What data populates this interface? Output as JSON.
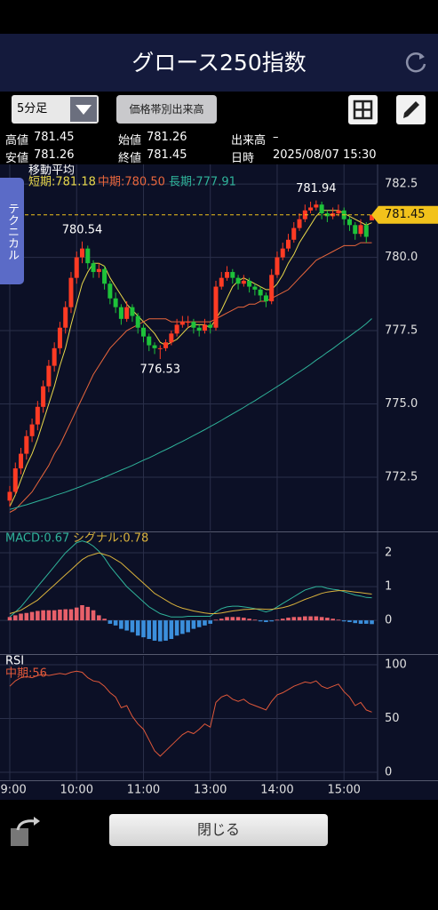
{
  "header": {
    "title": "グロース250指数"
  },
  "toolbar": {
    "interval": "5分足",
    "button": "価格帯別出来高"
  },
  "info": {
    "rows": [
      [
        {
          "label": "高値",
          "value": 781.45
        },
        {
          "label": "始値",
          "value": 781.26
        },
        {
          "label": "出来高",
          "value": "–"
        }
      ],
      [
        {
          "label": "安値",
          "value": 781.26
        },
        {
          "label": "終値",
          "value": 781.45
        },
        {
          "label": "日時",
          "value": "2025/08/07 15:30"
        }
      ]
    ]
  },
  "side_tab": "テクニカル",
  "close_button": "閉じる",
  "chart_data": [
    {
      "type": "candlestick",
      "legend_title": "移動平均",
      "categories": [
        "09:00",
        null,
        null,
        null,
        null,
        null,
        null,
        null,
        null,
        null,
        null,
        null,
        "10:00",
        null,
        null,
        null,
        null,
        null,
        null,
        null,
        null,
        null,
        null,
        null,
        "11:00",
        null,
        null,
        null,
        null,
        null,
        null,
        null,
        null,
        null,
        null,
        null,
        "13:00",
        null,
        null,
        null,
        null,
        null,
        null,
        null,
        null,
        null,
        null,
        null,
        "14:00",
        null,
        null,
        null,
        null,
        null,
        null,
        null,
        null,
        null,
        null,
        null,
        "15:00",
        null,
        null,
        null,
        null,
        null
      ],
      "open": [
        771.7,
        772.0,
        772.8,
        773.3,
        773.9,
        774.3,
        774.9,
        775.6,
        776.3,
        776.9,
        777.6,
        778.3,
        779.3,
        780.0,
        780.3,
        779.8,
        779.5,
        779.6,
        779.1,
        778.6,
        778.3,
        777.9,
        778.3,
        778.0,
        777.6,
        777.3,
        777.0,
        776.9,
        776.9,
        777.1,
        777.4,
        777.7,
        777.8,
        777.8,
        777.6,
        777.5,
        777.7,
        777.6,
        779.0,
        779.3,
        779.5,
        779.3,
        779.1,
        779.2,
        779.0,
        778.9,
        778.7,
        778.5,
        779.4,
        780.0,
        780.3,
        780.6,
        781.0,
        781.3,
        781.6,
        781.7,
        781.8,
        781.5,
        781.4,
        781.5,
        781.6,
        781.3,
        781.1,
        780.8,
        781.1,
        781.26
      ],
      "high": [
        772.2,
        773.0,
        773.5,
        774.1,
        774.5,
        775.1,
        775.8,
        776.5,
        777.1,
        777.8,
        778.5,
        779.5,
        780.2,
        780.54,
        780.4,
        779.9,
        779.8,
        779.7,
        779.2,
        778.8,
        778.4,
        778.5,
        778.4,
        778.1,
        777.7,
        777.4,
        777.1,
        777.0,
        777.2,
        777.5,
        777.9,
        778.0,
        778.0,
        777.9,
        777.7,
        777.9,
        777.8,
        779.2,
        779.5,
        779.7,
        779.6,
        779.4,
        779.4,
        779.3,
        779.1,
        779.0,
        778.8,
        779.6,
        780.2,
        780.5,
        780.8,
        781.2,
        781.5,
        781.8,
        781.9,
        781.94,
        781.9,
        781.6,
        781.7,
        781.8,
        781.7,
        781.4,
        781.2,
        781.3,
        781.2,
        781.45
      ],
      "low": [
        771.5,
        771.9,
        772.6,
        773.1,
        773.7,
        774.1,
        774.7,
        775.4,
        776.1,
        776.7,
        777.4,
        778.1,
        779.1,
        779.8,
        779.6,
        779.3,
        779.3,
        778.9,
        778.4,
        778.1,
        777.7,
        777.8,
        777.8,
        777.4,
        777.1,
        776.8,
        776.7,
        776.53,
        776.8,
        777.0,
        777.3,
        777.6,
        777.6,
        777.4,
        777.3,
        777.4,
        777.4,
        777.5,
        778.9,
        779.2,
        779.1,
        778.9,
        779.0,
        778.8,
        778.7,
        778.5,
        778.3,
        778.4,
        779.3,
        779.9,
        780.2,
        780.5,
        780.9,
        781.2,
        781.5,
        781.6,
        781.3,
        781.2,
        781.3,
        781.4,
        781.1,
        780.9,
        780.6,
        780.7,
        780.5,
        781.26
      ],
      "close": [
        772.0,
        772.8,
        773.3,
        773.9,
        774.3,
        774.9,
        775.6,
        776.3,
        776.9,
        777.6,
        778.3,
        779.3,
        780.0,
        780.3,
        779.8,
        779.5,
        779.6,
        779.1,
        778.6,
        778.3,
        777.9,
        778.3,
        778.0,
        777.6,
        777.3,
        777.0,
        776.9,
        776.9,
        777.1,
        777.4,
        777.7,
        777.8,
        777.8,
        777.6,
        777.5,
        777.7,
        777.6,
        779.0,
        779.3,
        779.5,
        779.3,
        779.1,
        779.2,
        779.0,
        778.9,
        778.7,
        778.5,
        779.4,
        780.0,
        780.3,
        780.6,
        781.0,
        781.3,
        781.6,
        781.7,
        781.8,
        781.5,
        781.4,
        781.5,
        781.6,
        781.3,
        781.1,
        780.8,
        781.1,
        780.7,
        781.45
      ],
      "up_color": "#ff3b24",
      "down_color": "#1ec23a",
      "series": [
        {
          "name": "短期:781.18",
          "color": "#e8d84a",
          "values": [
            771.5,
            771.9,
            772.4,
            772.9,
            773.3,
            773.8,
            774.4,
            775.0,
            775.6,
            776.3,
            776.9,
            777.7,
            778.4,
            779.1,
            779.5,
            779.8,
            779.8,
            779.7,
            779.3,
            779.0,
            778.7,
            778.4,
            778.2,
            778.0,
            777.8,
            777.6,
            777.4,
            777.1,
            777.0,
            777.1,
            777.2,
            777.4,
            777.6,
            777.7,
            777.7,
            777.7,
            777.6,
            777.9,
            778.2,
            778.6,
            779.0,
            779.2,
            779.3,
            779.2,
            779.1,
            779.0,
            778.9,
            778.9,
            779.1,
            779.4,
            779.8,
            780.1,
            780.5,
            780.8,
            781.1,
            781.4,
            781.6,
            781.6,
            781.6,
            781.6,
            781.5,
            781.4,
            781.3,
            781.2,
            781.1,
            781.18
          ]
        },
        {
          "name": "中期:780.50",
          "color": "#e8663c",
          "values": [
            771.3,
            771.4,
            771.6,
            771.8,
            772.0,
            772.3,
            772.6,
            772.9,
            773.3,
            773.6,
            774.0,
            774.4,
            774.8,
            775.2,
            775.6,
            776.0,
            776.3,
            776.6,
            776.9,
            777.1,
            777.3,
            777.5,
            777.6,
            777.7,
            777.8,
            777.9,
            777.9,
            777.9,
            777.9,
            777.8,
            777.8,
            777.8,
            777.8,
            777.8,
            777.8,
            777.8,
            777.8,
            777.9,
            778.0,
            778.1,
            778.2,
            778.3,
            778.3,
            778.4,
            778.4,
            778.5,
            778.5,
            778.6,
            778.7,
            778.8,
            778.9,
            779.1,
            779.3,
            779.5,
            779.7,
            779.9,
            780.0,
            780.1,
            780.2,
            780.3,
            780.4,
            780.4,
            780.4,
            780.5,
            780.5,
            780.5
          ]
        },
        {
          "name": "長期:777.91",
          "color": "#2fb39a",
          "values": [
            771.4,
            771.45,
            771.51,
            771.56,
            771.62,
            771.68,
            771.74,
            771.8,
            771.87,
            771.93,
            771.99,
            772.06,
            772.13,
            772.2,
            772.28,
            772.35,
            772.42,
            772.5,
            772.58,
            772.66,
            772.74,
            772.82,
            772.9,
            772.99,
            773.08,
            773.16,
            773.25,
            773.35,
            773.44,
            773.53,
            773.63,
            773.72,
            773.82,
            773.92,
            774.02,
            774.12,
            774.23,
            774.33,
            774.44,
            774.55,
            774.66,
            774.77,
            774.88,
            775.0,
            775.11,
            775.23,
            775.35,
            775.47,
            775.59,
            775.71,
            775.84,
            775.97,
            776.09,
            776.22,
            776.35,
            776.49,
            776.62,
            776.76,
            776.89,
            777.03,
            777.17,
            777.31,
            777.45,
            777.59,
            777.74,
            777.91
          ]
        }
      ],
      "annotations": [
        {
          "label": "780.54",
          "value": 780.54,
          "at": 13
        },
        {
          "label": "776.53",
          "value": 776.53,
          "at": 27
        },
        {
          "label": "781.94",
          "value": 781.94,
          "at": 55
        }
      ],
      "last_price": 781.45,
      "last_price_color": "#f2c21b",
      "ylim": [
        770.68,
        783.17
      ],
      "yticks": [
        782.5,
        {
          "value": 780,
          "label": "780.0"
        },
        777.5,
        {
          "value": 775,
          "label": "775.0"
        },
        772.5
      ],
      "grid": true
    },
    {
      "type": "macd",
      "series": [
        {
          "name": "MACD:0.67",
          "color": "#2fb39a",
          "values": [
            0.1,
            0.25,
            0.4,
            0.6,
            0.8,
            1.0,
            1.2,
            1.4,
            1.6,
            1.8,
            2.0,
            2.15,
            2.3,
            2.35,
            2.3,
            2.2,
            2.05,
            1.85,
            1.6,
            1.4,
            1.2,
            1.0,
            0.85,
            0.7,
            0.55,
            0.4,
            0.3,
            0.2,
            0.15,
            0.1,
            0.1,
            0.1,
            0.12,
            0.12,
            0.12,
            0.12,
            0.12,
            0.25,
            0.35,
            0.4,
            0.42,
            0.42,
            0.4,
            0.38,
            0.35,
            0.3,
            0.25,
            0.3,
            0.4,
            0.5,
            0.6,
            0.7,
            0.8,
            0.9,
            0.95,
            1.0,
            1.0,
            0.95,
            0.92,
            0.9,
            0.85,
            0.8,
            0.75,
            0.72,
            0.68,
            0.67
          ]
        },
        {
          "name": "シグナル:0.78",
          "color": "#d9b23c",
          "values": [
            0.2,
            0.25,
            0.3,
            0.4,
            0.5,
            0.6,
            0.75,
            0.9,
            1.05,
            1.2,
            1.35,
            1.5,
            1.65,
            1.8,
            1.9,
            1.95,
            2.0,
            1.95,
            1.9,
            1.8,
            1.7,
            1.55,
            1.4,
            1.25,
            1.1,
            0.95,
            0.8,
            0.7,
            0.6,
            0.5,
            0.42,
            0.36,
            0.32,
            0.28,
            0.25,
            0.22,
            0.2,
            0.2,
            0.22,
            0.25,
            0.28,
            0.3,
            0.32,
            0.33,
            0.34,
            0.34,
            0.33,
            0.33,
            0.35,
            0.38,
            0.42,
            0.48,
            0.55,
            0.62,
            0.68,
            0.74,
            0.8,
            0.84,
            0.86,
            0.88,
            0.88,
            0.86,
            0.84,
            0.82,
            0.8,
            0.78
          ]
        }
      ],
      "histogram": {
        "up_color": "#e8606a",
        "down_color": "#3b8fdc",
        "values": [
          0.1,
          0.15,
          0.2,
          0.22,
          0.25,
          0.28,
          0.3,
          0.3,
          0.3,
          0.32,
          0.33,
          0.33,
          0.38,
          0.45,
          0.4,
          0.3,
          0.15,
          0.05,
          -0.1,
          -0.15,
          -0.25,
          -0.3,
          -0.35,
          -0.45,
          -0.5,
          -0.55,
          -0.6,
          -0.62,
          -0.6,
          -0.55,
          -0.45,
          -0.4,
          -0.35,
          -0.25,
          -0.2,
          -0.15,
          -0.1,
          0.02,
          0.05,
          0.1,
          0.1,
          0.1,
          0.08,
          0.05,
          0.02,
          -0.03,
          -0.05,
          -0.03,
          0.02,
          0.05,
          0.08,
          0.1,
          0.1,
          0.12,
          0.12,
          0.12,
          0.1,
          0.08,
          0.05,
          0.02,
          -0.03,
          -0.05,
          -0.08,
          -0.1,
          -0.1,
          -0.11
        ]
      },
      "ylim": [
        -0.97,
        2.58
      ],
      "yticks": [
        0,
        1,
        2
      ],
      "grid": true
    },
    {
      "type": "rsi",
      "title": "RSI",
      "series": [
        {
          "name": "中期:56",
          "color": "#e0583a",
          "values": [
            80,
            85,
            88,
            89,
            88,
            90,
            91,
            90,
            91,
            92,
            91,
            93,
            94,
            93,
            88,
            85,
            84,
            80,
            74,
            70,
            60,
            62,
            52,
            45,
            40,
            30,
            20,
            15,
            20,
            25,
            30,
            35,
            38,
            36,
            40,
            45,
            42,
            65,
            70,
            72,
            68,
            66,
            68,
            64,
            62,
            60,
            58,
            66,
            72,
            74,
            77,
            80,
            82,
            84,
            83,
            85,
            80,
            78,
            80,
            82,
            75,
            70,
            62,
            65,
            58,
            56
          ]
        }
      ],
      "ylim": [
        -7.4,
        108.3
      ],
      "yticks": [
        0,
        50,
        100
      ],
      "grid": true
    }
  ]
}
